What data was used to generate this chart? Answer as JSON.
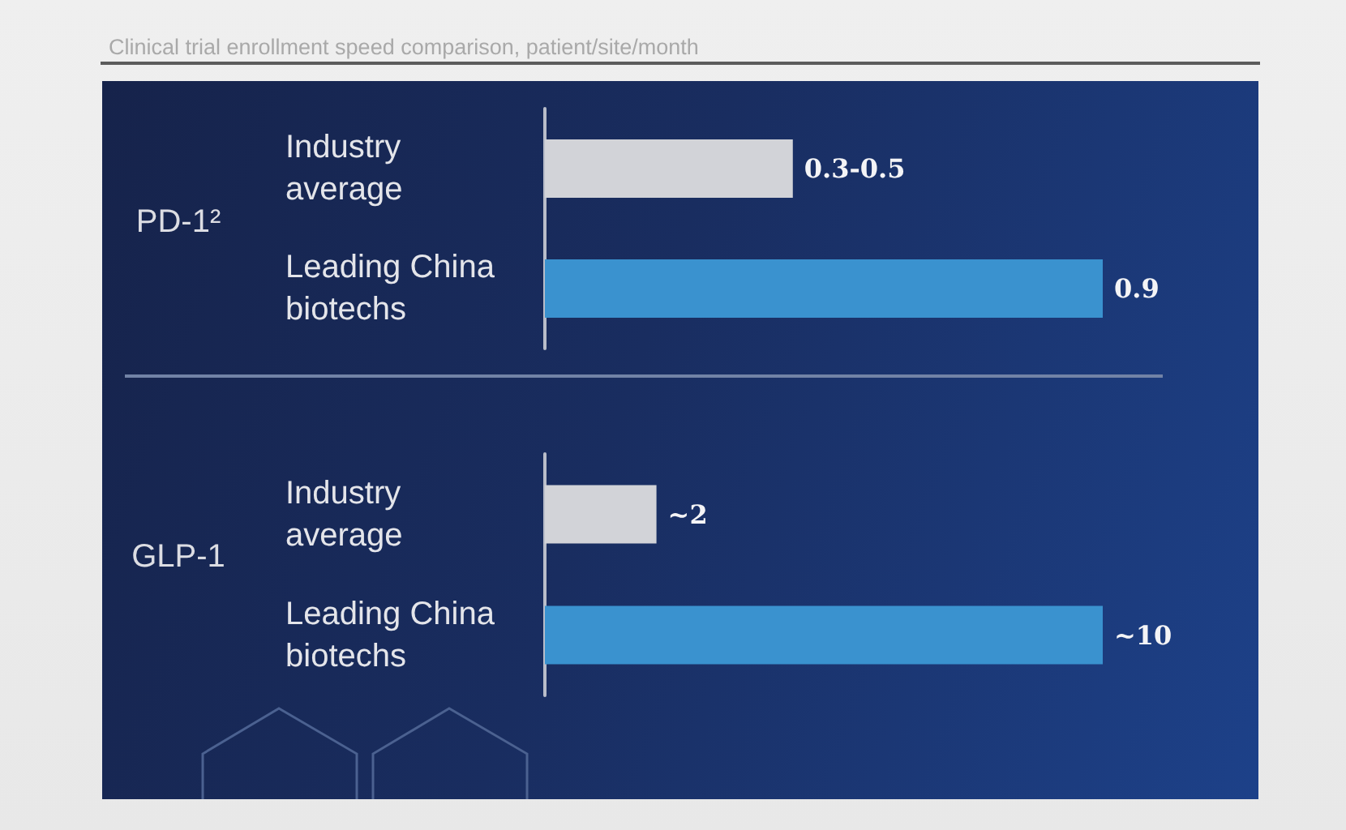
{
  "chart_data": [
    {
      "type": "bar",
      "orientation": "horizontal",
      "title": "Clinical trial enrollment speed comparison, patient/site/month",
      "ylabel": "PD-1²",
      "categories": [
        "Industry average",
        "Leading China biotechs"
      ],
      "values": [
        0.4,
        0.9
      ],
      "colors": [
        "#d2d3d8",
        "#3a92cf"
      ],
      "value_labels": [
        "0.3-0.5",
        "0.9"
      ]
    },
    {
      "type": "bar",
      "orientation": "horizontal",
      "ylabel": "GLP-1",
      "categories": [
        "Industry average",
        "Leading China biotechs"
      ],
      "values": [
        2,
        10
      ],
      "colors": [
        "#d2d3d8",
        "#3a92cf"
      ],
      "value_labels": [
        "~2",
        "~10"
      ]
    }
  ]
}
